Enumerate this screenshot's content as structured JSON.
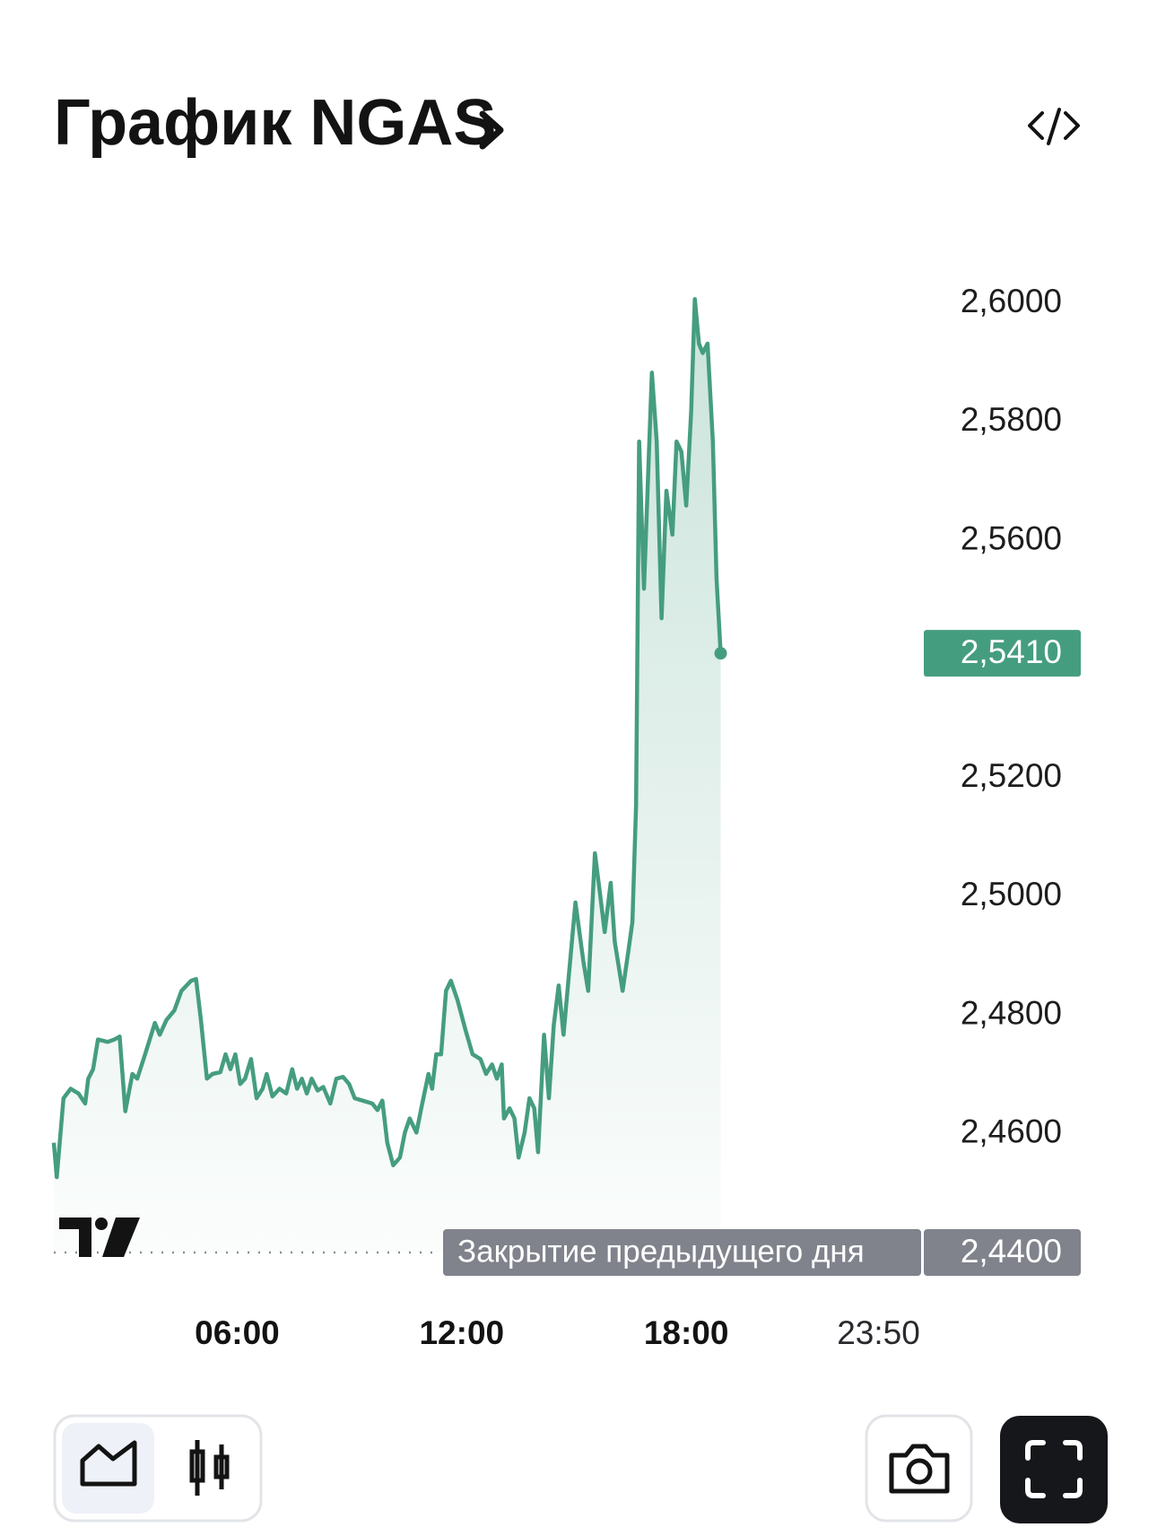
{
  "header": {
    "title": "График NGAS"
  },
  "chart_data": {
    "type": "line",
    "x": [
      1.1,
      1.18,
      1.36,
      1.55,
      1.76,
      1.94,
      2.02,
      2.15,
      2.28,
      2.54,
      2.72,
      2.86,
      3.01,
      3.2,
      3.33,
      3.54,
      3.8,
      3.93,
      4.11,
      4.32,
      4.51,
      4.77,
      4.9,
      5.03,
      5.19,
      5.34,
      5.55,
      5.69,
      5.82,
      5.95,
      6.08,
      6.21,
      6.37,
      6.52,
      6.68,
      6.79,
      6.94,
      7.13,
      7.31,
      7.47,
      7.6,
      7.73,
      7.86,
      7.99,
      8.15,
      8.3,
      8.49,
      8.65,
      8.83,
      8.99,
      9.14,
      9.35,
      9.61,
      9.75,
      9.88,
      10.01,
      10.17,
      10.35,
      10.48,
      10.61,
      10.79,
      10.92,
      11.11,
      11.21,
      11.32,
      11.45,
      11.58,
      11.71,
      11.89,
      12.1,
      12.29,
      12.5,
      12.65,
      12.81,
      12.94,
      13.07,
      13.13,
      13.28,
      13.41,
      13.52,
      13.68,
      13.81,
      13.94,
      14.04,
      14.2,
      14.33,
      14.46,
      14.59,
      14.72,
      14.85,
      15.04,
      15.25,
      15.38,
      15.56,
      15.69,
      15.82,
      15.98,
      16.09,
      16.3,
      16.45,
      16.56,
      16.66,
      16.74,
      16.87,
      17.08,
      17.21,
      17.34,
      17.47,
      17.63,
      17.74,
      17.87,
      18.0,
      18.13,
      18.23,
      18.34,
      18.44,
      18.57,
      18.71,
      18.81,
      18.92
    ],
    "values": [
      2.4585,
      2.4527,
      2.466,
      2.4676,
      2.4668,
      2.4651,
      2.4693,
      2.4709,
      2.4759,
      2.4755,
      2.4759,
      2.4764,
      2.4638,
      2.4701,
      2.4693,
      2.4734,
      2.4787,
      2.4767,
      2.4792,
      2.4808,
      2.4841,
      2.4858,
      2.4861,
      2.4792,
      2.4693,
      2.4701,
      2.4704,
      2.4734,
      2.4709,
      2.4734,
      2.4684,
      2.4693,
      2.4726,
      2.466,
      2.4676,
      2.4701,
      2.4663,
      2.4676,
      2.4668,
      2.4709,
      2.4676,
      2.4693,
      2.4668,
      2.4693,
      2.4673,
      2.4679,
      2.4651,
      2.4693,
      2.4696,
      2.4684,
      2.466,
      2.4656,
      2.4651,
      2.464,
      2.4656,
      2.4585,
      2.4547,
      2.456,
      2.4602,
      2.4626,
      2.4602,
      2.4643,
      2.4701,
      2.4676,
      2.4734,
      2.4734,
      2.4841,
      2.4858,
      2.4825,
      2.4775,
      2.4734,
      2.4726,
      2.4701,
      2.4717,
      2.4693,
      2.4717,
      2.4626,
      2.4643,
      2.4626,
      2.456,
      2.4602,
      2.466,
      2.4643,
      2.4569,
      2.4767,
      2.466,
      2.4783,
      2.485,
      2.4767,
      2.4858,
      2.499,
      2.4891,
      2.4841,
      2.5073,
      2.5007,
      2.494,
      2.5023,
      2.4924,
      2.4841,
      2.4907,
      2.4957,
      2.5155,
      2.5767,
      2.5519,
      2.5883,
      2.5767,
      2.5469,
      2.5684,
      2.561,
      2.5767,
      2.575,
      2.5659,
      2.5817,
      2.6007,
      2.5932,
      2.5916,
      2.5932,
      2.5767,
      2.5536,
      2.541
    ],
    "color": "#459d7f",
    "xlim": [
      1.1,
      24.3
    ],
    "xticks": [
      {
        "value": 6,
        "label": "06:00"
      },
      {
        "value": 12,
        "label": "12:00"
      },
      {
        "value": 18,
        "label": "18:00"
      },
      {
        "value": 23.8333,
        "label": "23:50"
      }
    ],
    "ylim": [
      2.44,
      2.6
    ],
    "yticks": [
      {
        "value": 2.46,
        "label": "2,4600"
      },
      {
        "value": 2.48,
        "label": "2,4800"
      },
      {
        "value": 2.5,
        "label": "2,5000"
      },
      {
        "value": 2.52,
        "label": "2,5200"
      },
      {
        "value": 2.56,
        "label": "2,5600"
      },
      {
        "value": 2.58,
        "label": "2,5800"
      },
      {
        "value": 2.6,
        "label": "2,6000"
      }
    ],
    "last_price": {
      "value": 2.541,
      "label": "2,5410"
    },
    "reference_line": {
      "value": 2.44,
      "value_label": "2,4400",
      "label": "Закрытие предыдущего дня"
    },
    "grid": false
  }
}
